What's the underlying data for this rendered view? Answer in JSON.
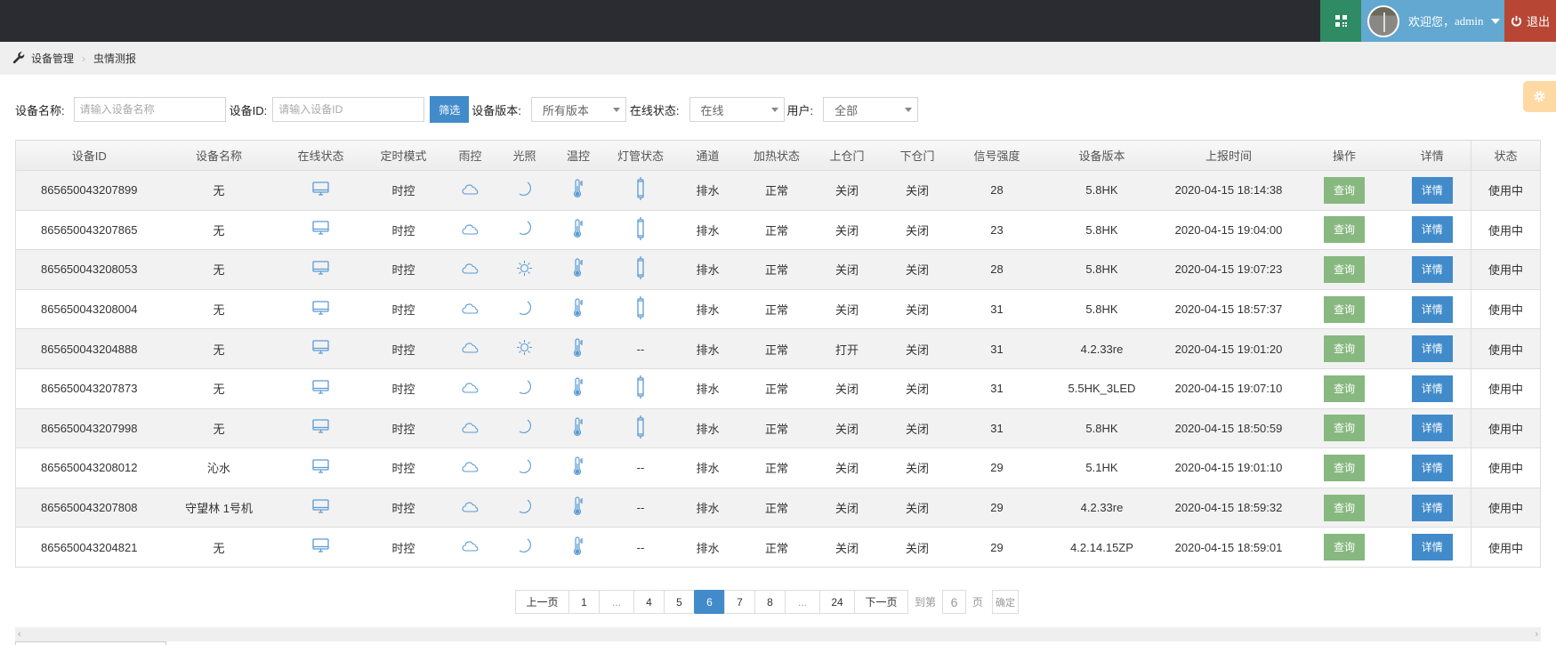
{
  "header": {
    "qr_icon": "qrcode-icon",
    "welcome": "欢迎您，",
    "username": "admin",
    "logout": "退出",
    "colors": {
      "bar": "#2b2c31",
      "qr": "#2e8b63",
      "user": "#62a8d1",
      "logout": "#b74635"
    }
  },
  "breadcrumb": {
    "items": [
      "设备管理",
      "虫情测报"
    ]
  },
  "filters": {
    "name_label": "设备名称:",
    "name_placeholder": "请输入设备名称",
    "name_value": "",
    "id_label": "设备ID:",
    "id_placeholder": "请输入设备ID",
    "id_value": "",
    "filter_button": "筛选",
    "version_label": "设备版本:",
    "version_value": "所有版本",
    "online_label": "在线状态:",
    "online_value": "在线",
    "user_label": "用户:",
    "user_value": "全部"
  },
  "table": {
    "headers": [
      "设备ID",
      "设备名称",
      "在线状态",
      "定时模式",
      "雨控",
      "光照",
      "温控",
      "灯管状态",
      "通道",
      "加热状态",
      "上仓门",
      "下仓门",
      "信号强度",
      "设备版本",
      "上报时间",
      "操作",
      "详情",
      "状态"
    ],
    "query_label": "查询",
    "detail_label": "详情",
    "rows": [
      {
        "id": "865650043207899",
        "name": "无",
        "online": "monitor",
        "timer": "时控",
        "rain": "cloud",
        "light": "moon",
        "temp": "thermometer",
        "lamp": "lamp",
        "channel": "排水",
        "heat": "正常",
        "upper": "关闭",
        "lower": "关闭",
        "signal": "28",
        "version": "5.8HK",
        "time": "2020-04-15 18:14:38",
        "status": "使用中"
      },
      {
        "id": "865650043207865",
        "name": "无",
        "online": "monitor",
        "timer": "时控",
        "rain": "cloud",
        "light": "moon",
        "temp": "thermometer",
        "lamp": "lamp",
        "channel": "排水",
        "heat": "正常",
        "upper": "关闭",
        "lower": "关闭",
        "signal": "23",
        "version": "5.8HK",
        "time": "2020-04-15 19:04:00",
        "status": "使用中"
      },
      {
        "id": "865650043208053",
        "name": "无",
        "online": "monitor",
        "timer": "时控",
        "rain": "cloud",
        "light": "sun",
        "temp": "thermometer",
        "lamp": "lamp",
        "channel": "排水",
        "heat": "正常",
        "upper": "关闭",
        "lower": "关闭",
        "signal": "28",
        "version": "5.8HK",
        "time": "2020-04-15 19:07:23",
        "status": "使用中"
      },
      {
        "id": "865650043208004",
        "name": "无",
        "online": "monitor",
        "timer": "时控",
        "rain": "cloud",
        "light": "moon",
        "temp": "thermometer",
        "lamp": "lamp",
        "channel": "排水",
        "heat": "正常",
        "upper": "关闭",
        "lower": "关闭",
        "signal": "31",
        "version": "5.8HK",
        "time": "2020-04-15 18:57:37",
        "status": "使用中"
      },
      {
        "id": "865650043204888",
        "name": "无",
        "online": "monitor",
        "timer": "时控",
        "rain": "cloud",
        "light": "sun",
        "temp": "thermometer",
        "lamp": "--",
        "channel": "排水",
        "heat": "正常",
        "upper": "打开",
        "lower": "关闭",
        "signal": "31",
        "version": "4.2.33re",
        "time": "2020-04-15 19:01:20",
        "status": "使用中"
      },
      {
        "id": "865650043207873",
        "name": "无",
        "online": "monitor",
        "timer": "时控",
        "rain": "cloud",
        "light": "moon",
        "temp": "thermometer",
        "lamp": "lamp",
        "channel": "排水",
        "heat": "正常",
        "upper": "关闭",
        "lower": "关闭",
        "signal": "31",
        "version": "5.5HK_3LED",
        "time": "2020-04-15 19:07:10",
        "status": "使用中"
      },
      {
        "id": "865650043207998",
        "name": "无",
        "online": "monitor",
        "timer": "时控",
        "rain": "cloud",
        "light": "moon",
        "temp": "thermometer",
        "lamp": "lamp",
        "channel": "排水",
        "heat": "正常",
        "upper": "关闭",
        "lower": "关闭",
        "signal": "31",
        "version": "5.8HK",
        "time": "2020-04-15 18:50:59",
        "status": "使用中"
      },
      {
        "id": "865650043208012",
        "name": "沁水",
        "online": "monitor",
        "timer": "时控",
        "rain": "cloud",
        "light": "moon",
        "temp": "thermometer",
        "lamp": "--",
        "channel": "排水",
        "heat": "正常",
        "upper": "关闭",
        "lower": "关闭",
        "signal": "29",
        "version": "5.1HK",
        "time": "2020-04-15 19:01:10",
        "status": "使用中"
      },
      {
        "id": "865650043207808",
        "name": "守望林 1号机",
        "online": "monitor",
        "timer": "时控",
        "rain": "cloud",
        "light": "moon",
        "temp": "thermometer",
        "lamp": "--",
        "channel": "排水",
        "heat": "正常",
        "upper": "关闭",
        "lower": "关闭",
        "signal": "29",
        "version": "4.2.33re",
        "time": "2020-04-15 18:59:32",
        "status": "使用中"
      },
      {
        "id": "865650043204821",
        "name": "无",
        "online": "monitor",
        "timer": "时控",
        "rain": "cloud",
        "light": "moon",
        "temp": "thermometer",
        "lamp": "--",
        "channel": "排水",
        "heat": "正常",
        "upper": "关闭",
        "lower": "关闭",
        "signal": "29",
        "version": "4.2.14.15ZP",
        "time": "2020-04-15 18:59:01",
        "status": "使用中"
      }
    ]
  },
  "pagination": {
    "prev": "上一页",
    "pages": [
      "1",
      "...",
      "4",
      "5",
      "6",
      "7",
      "8",
      "...",
      "24"
    ],
    "current": "6",
    "next": "下一页",
    "goto_label": "到第",
    "goto_value": "6",
    "page_suffix": "页",
    "confirm": "确定"
  }
}
